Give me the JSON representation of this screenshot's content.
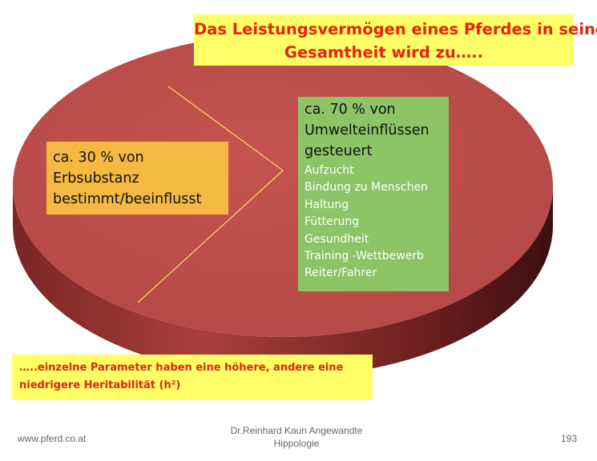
{
  "title": [
    "Das Leistungsvermögen eines Pferdes in seiner",
    "Gesamtheit wird zu….."
  ],
  "chart_data": {
    "type": "pie",
    "slices": [
      {
        "label": "ca. 30 % von Erbsubstanz bestimmt/beeinflusst",
        "value": 30,
        "color": "#f4b942"
      },
      {
        "label": "ca. 70 % von Umwelteinflüssen gesteuert",
        "value": 70,
        "color": "#8cc467"
      }
    ],
    "pie_color": "#c0504d"
  },
  "box_30": {
    "lines": [
      "ca. 30 % von",
      "Erbsubstanz",
      "bestimmt/beeinflusst"
    ]
  },
  "box_70": {
    "lines": [
      "ca. 70 % von",
      "Umwelteinflüssen",
      "gesteuert"
    ],
    "items": [
      "Aufzucht",
      "Bindung zu Menschen",
      "Haltung",
      "Fütterung",
      "Gesundheit",
      "Training -Wettbewerb",
      "Reiter/Fahrer"
    ]
  },
  "note": {
    "lines": [
      "…..einzelne Parameter haben eine höhere, andere eine",
      "niedrigere Heritabilität (h²)"
    ]
  },
  "footer": {
    "left": "www.pferd.co.at",
    "center": [
      "Dr.Reinhard Kaun Angewandte",
      "Hippologie"
    ],
    "right": "193"
  }
}
